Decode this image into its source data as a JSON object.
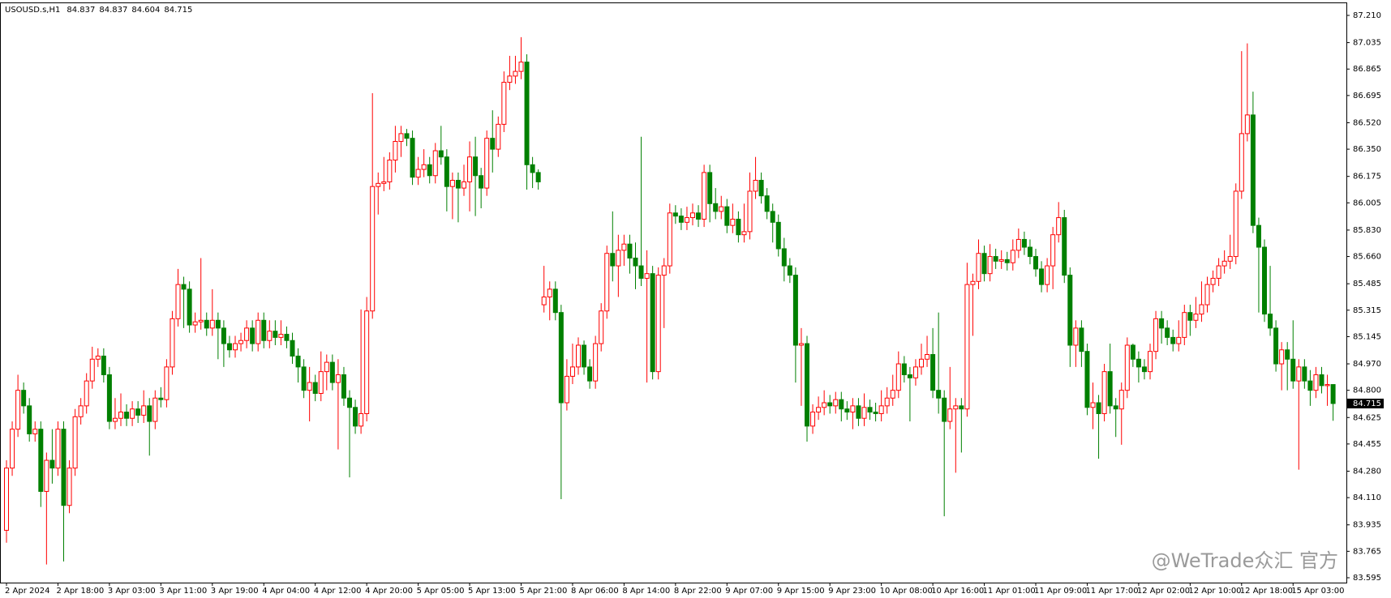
{
  "chart_data": {
    "type": "candlestick",
    "title": "USOUSD.s,H1",
    "watermark": "@WeTrade众汇 官方",
    "up_color": "#ff0000",
    "down_color": "#008000",
    "grid": false,
    "ylim": [
      83.595,
      87.21
    ],
    "yticks": [
      {
        "value": 87.21,
        "label": "87.210"
      },
      87.035,
      86.865,
      86.695,
      {
        "value": 86.52,
        "label": "86.520"
      },
      {
        "value": 86.35,
        "label": "86.350"
      },
      86.175,
      86.005,
      {
        "value": 85.83,
        "label": "85.830"
      },
      {
        "value": 85.66,
        "label": "85.660"
      },
      85.485,
      85.315,
      85.145,
      {
        "value": 84.97,
        "label": "84.970"
      },
      {
        "value": 84.8,
        "label": "84.800"
      },
      84.625,
      84.455,
      {
        "value": 84.28,
        "label": "84.280"
      },
      {
        "value": 84.11,
        "label": "84.110"
      },
      83.935,
      83.765,
      83.595
    ],
    "categories": [
      "2 Apr 2024",
      null,
      null,
      null,
      null,
      null,
      null,
      null,
      null,
      "2 Apr 18:00",
      null,
      null,
      null,
      null,
      null,
      null,
      null,
      null,
      "3 Apr 03:00",
      null,
      null,
      null,
      null,
      null,
      null,
      null,
      null,
      "3 Apr 11:00",
      null,
      null,
      null,
      null,
      null,
      null,
      null,
      null,
      "3 Apr 19:00",
      null,
      null,
      null,
      null,
      null,
      null,
      null,
      null,
      "4 Apr 04:00",
      null,
      null,
      null,
      null,
      null,
      null,
      null,
      null,
      "4 Apr 12:00",
      null,
      null,
      null,
      null,
      null,
      null,
      null,
      null,
      "4 Apr 20:00",
      null,
      null,
      null,
      null,
      null,
      null,
      null,
      null,
      "5 Apr 05:00",
      null,
      null,
      null,
      null,
      null,
      null,
      null,
      null,
      "5 Apr 13:00",
      null,
      null,
      null,
      null,
      null,
      null,
      null,
      null,
      "5 Apr 21:00",
      null,
      null,
      null,
      null,
      null,
      null,
      null,
      null,
      "8 Apr 06:00",
      null,
      null,
      null,
      null,
      null,
      null,
      null,
      null,
      "8 Apr 14:00",
      null,
      null,
      null,
      null,
      null,
      null,
      null,
      null,
      "8 Apr 22:00",
      null,
      null,
      null,
      null,
      null,
      null,
      null,
      null,
      "9 Apr 07:00",
      null,
      null,
      null,
      null,
      null,
      null,
      null,
      null,
      "9 Apr 15:00",
      null,
      null,
      null,
      null,
      null,
      null,
      null,
      null,
      "9 Apr 23:00",
      null,
      null,
      null,
      null,
      null,
      null,
      null,
      null,
      "10 Apr 08:00",
      null,
      null,
      null,
      null,
      null,
      null,
      null,
      null,
      "10 Apr 16:00",
      null,
      null,
      null,
      null,
      null,
      null,
      null,
      null,
      "11 Apr 01:00",
      null,
      null,
      null,
      null,
      null,
      null,
      null,
      null,
      "11 Apr 09:00",
      null,
      null,
      null,
      null,
      null,
      null,
      null,
      null,
      "11 Apr 17:00",
      null,
      null,
      null,
      null,
      null,
      null,
      null,
      null,
      "12 Apr 02:00",
      null,
      null,
      null,
      null,
      null,
      null,
      null,
      null,
      "12 Apr 10:00",
      null,
      null,
      null,
      null,
      null,
      null,
      null,
      null,
      "12 Apr 18:00",
      null,
      null,
      null,
      null,
      null,
      null,
      null,
      null,
      "15 Apr 03:00",
      null,
      null,
      null,
      null,
      null,
      null,
      null
    ],
    "open": [
      83.9,
      84.3,
      84.55,
      84.8,
      84.7,
      84.52,
      84.55,
      84.15,
      84.35,
      84.3,
      84.55,
      84.06,
      84.3,
      84.63,
      84.7,
      84.86,
      85.0,
      85.02,
      84.9,
      84.6,
      84.62,
      84.66,
      84.62,
      84.68,
      84.64,
      84.7,
      84.6,
      84.75,
      84.74,
      84.95,
      85.26,
      85.48,
      85.45,
      85.22,
      85.24,
      85.25,
      85.2,
      85.25,
      85.2,
      85.1,
      85.06,
      85.1,
      85.12,
      85.2,
      85.1,
      85.25,
      85.12,
      85.18,
      85.14,
      85.16,
      85.12,
      85.02,
      84.95,
      84.8,
      84.85,
      84.78,
      84.92,
      84.98,
      84.85,
      84.9,
      84.75,
      84.69,
      84.57,
      84.65,
      85.31,
      86.11,
      86.13,
      86.14,
      86.28,
      86.4,
      86.45,
      86.42,
      86.17,
      86.22,
      86.25,
      86.18,
      86.34,
      86.3,
      86.11,
      86.15,
      86.1,
      86.14,
      86.3,
      86.18,
      86.1,
      86.42,
      86.35,
      86.51,
      86.78,
      86.82,
      86.85,
      86.91,
      86.25,
      86.2,
      85.35,
      85.4,
      85.45,
      85.3,
      84.72,
      84.89,
      84.95,
      85.09,
      84.95,
      84.86,
      85.1,
      85.31,
      85.68,
      85.6,
      85.7,
      85.74,
      85.65,
      85.6,
      85.52,
      85.55,
      84.92,
      85.54,
      85.6,
      85.94,
      85.92,
      85.88,
      85.91,
      85.94,
      85.9,
      86.2,
      86.0,
      85.95,
      85.98,
      85.86,
      85.9,
      85.8,
      85.82,
      86.08,
      86.15,
      86.05,
      85.95,
      85.88,
      85.71,
      85.6,
      85.54,
      85.09,
      85.1,
      84.57,
      84.66,
      84.69,
      84.72,
      84.7,
      84.74,
      84.68,
      84.66,
      84.7,
      84.62,
      84.69,
      84.66,
      84.65,
      84.7,
      84.75,
      84.8,
      84.97,
      84.9,
      84.88,
      84.95,
      85.0,
      85.03,
      84.8,
      84.75,
      84.6,
      84.68,
      84.7,
      84.68,
      85.48,
      85.5,
      85.68,
      85.55,
      85.66,
      85.63,
      85.64,
      85.62,
      85.7,
      85.77,
      85.72,
      85.66,
      85.58,
      85.48,
      85.6,
      85.8,
      85.91,
      85.54,
      85.09,
      85.2,
      85.05,
      84.69,
      84.72,
      84.65,
      84.92,
      84.7,
      84.68,
      84.8,
      85.09,
      85.0,
      84.95,
      84.92,
      85.05,
      85.26,
      85.2,
      85.14,
      85.1,
      85.14,
      85.3,
      85.25,
      85.29,
      85.35,
      85.48,
      85.52,
      85.6,
      85.63,
      85.66,
      86.08,
      86.45,
      86.57,
      85.86,
      85.72,
      85.29,
      85.2,
      84.97,
      85.06,
      85.0,
      84.86,
      84.95,
      84.86,
      84.8,
      84.9,
      84.83,
      84.837
    ],
    "high": [
      84.35,
      84.6,
      84.9,
      84.85,
      84.75,
      84.6,
      84.6,
      84.4,
      84.55,
      84.6,
      84.6,
      84.35,
      84.68,
      84.75,
      84.91,
      85.08,
      85.07,
      85.07,
      84.95,
      84.75,
      84.78,
      84.71,
      84.73,
      84.73,
      84.8,
      84.75,
      84.8,
      84.82,
      85.0,
      85.31,
      85.58,
      85.53,
      85.5,
      85.3,
      85.65,
      85.3,
      85.45,
      85.3,
      85.25,
      85.15,
      85.15,
      85.17,
      85.25,
      85.25,
      85.3,
      85.3,
      85.25,
      85.25,
      85.25,
      85.21,
      85.17,
      85.07,
      85.0,
      84.95,
      84.9,
      85.05,
      85.03,
      85.03,
      85.0,
      84.95,
      84.8,
      84.74,
      85.32,
      85.4,
      86.71,
      86.2,
      86.3,
      86.33,
      86.5,
      86.5,
      86.48,
      86.47,
      86.3,
      86.35,
      86.3,
      86.39,
      86.5,
      86.35,
      86.2,
      86.2,
      86.25,
      86.4,
      86.43,
      86.23,
      86.47,
      86.6,
      86.56,
      86.85,
      86.95,
      86.95,
      87.07,
      86.96,
      86.3,
      86.22,
      85.6,
      85.5,
      85.5,
      85.35,
      85.0,
      85.1,
      85.14,
      85.12,
      85.0,
      85.15,
      85.36,
      85.73,
      85.95,
      85.8,
      85.8,
      85.8,
      85.75,
      86.43,
      85.7,
      85.6,
      85.59,
      85.65,
      86.0,
      85.99,
      85.97,
      85.98,
      86.0,
      85.99,
      86.25,
      86.25,
      86.1,
      86.05,
      86.03,
      86.0,
      85.95,
      86.0,
      86.2,
      86.3,
      86.2,
      86.1,
      86.0,
      85.93,
      85.78,
      85.65,
      85.59,
      85.2,
      85.15,
      84.71,
      84.76,
      84.8,
      84.77,
      84.79,
      84.79,
      84.73,
      84.75,
      84.75,
      84.78,
      84.74,
      84.72,
      84.8,
      84.82,
      84.9,
      85.05,
      85.02,
      84.95,
      85.0,
      85.1,
      85.15,
      85.2,
      85.3,
      84.8,
      84.95,
      84.75,
      84.75,
      85.62,
      85.55,
      85.77,
      85.73,
      85.74,
      85.71,
      85.7,
      85.69,
      85.77,
      85.84,
      85.82,
      85.77,
      85.71,
      85.63,
      85.65,
      85.85,
      86.01,
      85.96,
      85.59,
      85.25,
      85.25,
      85.1,
      84.85,
      84.77,
      84.97,
      85.1,
      84.75,
      84.85,
      85.14,
      85.1,
      85.05,
      85.0,
      85.1,
      85.31,
      85.31,
      85.25,
      85.19,
      85.25,
      85.35,
      85.35,
      85.4,
      85.5,
      85.53,
      85.57,
      85.65,
      85.7,
      85.8,
      86.13,
      86.98,
      87.03,
      86.72,
      85.91,
      85.77,
      85.6,
      85.25,
      85.11,
      85.11,
      85.25,
      85.0,
      85.0,
      84.93,
      84.95,
      84.95,
      84.9,
      84.837
    ],
    "low": [
      83.82,
      84.25,
      84.5,
      84.65,
      84.47,
      84.47,
      84.05,
      83.68,
      84.2,
      84.25,
      83.7,
      84.01,
      84.25,
      84.58,
      84.65,
      84.81,
      84.95,
      84.85,
      84.55,
      84.55,
      84.57,
      84.57,
      84.57,
      84.59,
      84.59,
      84.38,
      84.55,
      84.69,
      84.69,
      84.9,
      85.21,
      85.2,
      85.17,
      85.17,
      85.19,
      85.15,
      85.15,
      85.0,
      84.95,
      85.01,
      85.01,
      85.05,
      85.07,
      85.05,
      85.05,
      85.07,
      85.07,
      85.09,
      85.09,
      85.07,
      84.97,
      84.85,
      84.75,
      84.6,
      84.73,
      84.73,
      84.8,
      84.8,
      84.42,
      84.7,
      84.24,
      84.52,
      84.52,
      84.6,
      85.26,
      85.93,
      86.08,
      86.09,
      86.2,
      86.3,
      86.37,
      86.12,
      86.12,
      86.17,
      86.13,
      86.13,
      86.25,
      85.95,
      85.9,
      85.88,
      86.05,
      85.95,
      85.92,
      85.97,
      86.05,
      86.2,
      86.3,
      86.46,
      86.73,
      86.77,
      86.8,
      86.09,
      86.1,
      86.09,
      85.3,
      85.25,
      85.25,
      84.1,
      84.67,
      84.84,
      84.9,
      84.9,
      84.81,
      84.81,
      85.05,
      85.26,
      85.5,
      85.4,
      85.6,
      85.55,
      85.45,
      85.47,
      84.85,
      84.87,
      84.87,
      85.2,
      85.55,
      85.87,
      85.83,
      85.83,
      85.86,
      85.85,
      85.85,
      85.88,
      85.9,
      85.9,
      85.81,
      85.81,
      85.75,
      85.75,
      85.77,
      86.03,
      86.0,
      85.9,
      85.75,
      85.66,
      85.5,
      85.49,
      84.85,
      84.7,
      84.47,
      84.52,
      84.61,
      84.64,
      84.65,
      84.65,
      84.6,
      84.61,
      84.55,
      84.57,
      84.57,
      84.61,
      84.6,
      84.6,
      84.65,
      84.7,
      84.75,
      84.85,
      84.6,
      84.83,
      84.9,
      84.95,
      84.75,
      84.65,
      83.99,
      84.55,
      84.27,
      84.4,
      84.63,
      85.15,
      85.45,
      85.5,
      85.5,
      85.58,
      85.58,
      85.57,
      85.57,
      85.65,
      85.67,
      85.61,
      85.53,
      85.43,
      85.43,
      85.45,
      85.75,
      85.49,
      84.95,
      84.95,
      84.95,
      84.64,
      84.55,
      84.36,
      84.6,
      84.65,
      84.5,
      84.45,
      84.75,
      84.95,
      84.85,
      84.87,
      84.87,
      85.0,
      85.1,
      85.09,
      85.05,
      85.05,
      85.09,
      85.15,
      85.2,
      85.24,
      85.3,
      85.43,
      85.47,
      85.55,
      85.58,
      85.61,
      86.03,
      86.4,
      85.81,
      85.3,
      85.24,
      85.15,
      84.92,
      84.8,
      84.8,
      84.81,
      84.29,
      84.81,
      84.7,
      84.75,
      84.78,
      84.7,
      84.604
    ],
    "close": [
      84.3,
      84.55,
      84.8,
      84.7,
      84.52,
      84.55,
      84.15,
      84.35,
      84.3,
      84.55,
      84.06,
      84.3,
      84.63,
      84.7,
      84.86,
      85.0,
      85.02,
      84.9,
      84.6,
      84.62,
      84.66,
      84.62,
      84.68,
      84.64,
      84.7,
      84.6,
      84.75,
      84.74,
      84.95,
      85.26,
      85.48,
      85.45,
      85.22,
      85.24,
      85.25,
      85.2,
      85.25,
      85.2,
      85.1,
      85.06,
      85.1,
      85.12,
      85.2,
      85.1,
      85.25,
      85.12,
      85.18,
      85.14,
      85.16,
      85.12,
      85.02,
      84.95,
      84.8,
      84.85,
      84.78,
      84.92,
      84.98,
      84.85,
      84.9,
      84.75,
      84.69,
      84.57,
      84.65,
      85.31,
      86.11,
      86.13,
      86.14,
      86.28,
      86.4,
      86.45,
      86.42,
      86.17,
      86.22,
      86.25,
      86.18,
      86.34,
      86.3,
      86.11,
      86.15,
      86.1,
      86.14,
      86.3,
      86.18,
      86.1,
      86.42,
      86.35,
      86.51,
      86.78,
      86.82,
      86.85,
      86.91,
      86.25,
      86.2,
      86.14,
      85.4,
      85.45,
      85.3,
      84.72,
      84.89,
      84.95,
      85.09,
      84.95,
      84.86,
      85.1,
      85.31,
      85.68,
      85.6,
      85.7,
      85.74,
      85.65,
      85.6,
      85.52,
      85.55,
      84.92,
      85.54,
      85.6,
      85.94,
      85.92,
      85.88,
      85.91,
      85.94,
      85.9,
      86.2,
      86.0,
      85.95,
      85.98,
      85.86,
      85.9,
      85.8,
      85.82,
      86.08,
      86.15,
      86.05,
      85.95,
      85.88,
      85.71,
      85.6,
      85.54,
      85.09,
      85.1,
      84.57,
      84.66,
      84.69,
      84.72,
      84.7,
      84.74,
      84.68,
      84.66,
      84.7,
      84.62,
      84.69,
      84.66,
      84.65,
      84.7,
      84.75,
      84.8,
      84.97,
      84.9,
      84.88,
      84.95,
      85.0,
      85.03,
      84.8,
      84.75,
      84.6,
      84.68,
      84.7,
      84.68,
      85.48,
      85.5,
      85.68,
      85.55,
      85.66,
      85.63,
      85.64,
      85.62,
      85.7,
      85.77,
      85.72,
      85.66,
      85.58,
      85.48,
      85.6,
      85.8,
      85.91,
      85.54,
      85.09,
      85.2,
      85.05,
      84.69,
      84.72,
      84.65,
      84.92,
      84.7,
      84.68,
      84.8,
      85.09,
      85.0,
      84.95,
      84.92,
      85.05,
      85.26,
      85.2,
      85.14,
      85.1,
      85.14,
      85.3,
      85.25,
      85.29,
      85.35,
      85.48,
      85.52,
      85.6,
      85.63,
      85.66,
      86.08,
      86.45,
      86.57,
      85.86,
      85.72,
      85.29,
      85.2,
      84.97,
      85.06,
      85.0,
      84.86,
      84.95,
      84.86,
      84.8,
      84.9,
      84.83,
      84.837,
      84.715
    ]
  }
}
